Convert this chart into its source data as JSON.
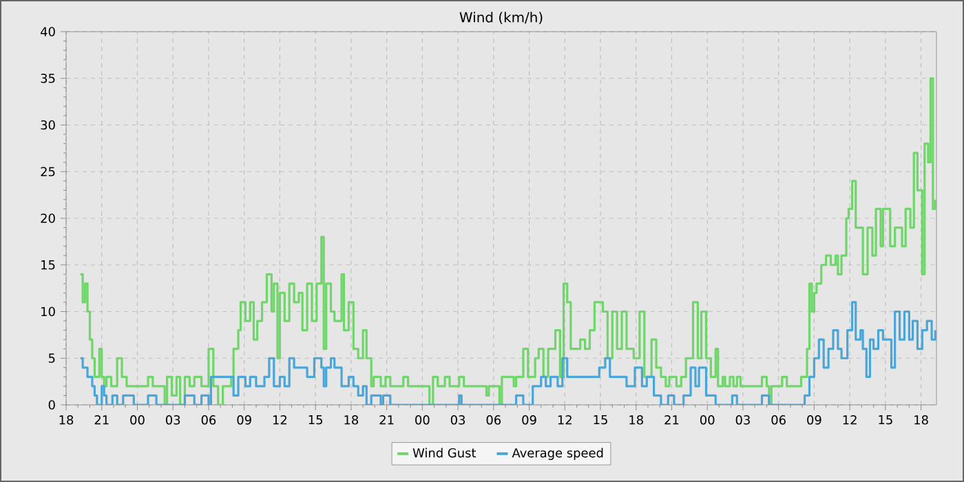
{
  "chart_data": {
    "type": "step",
    "title": "Wind (km/h)",
    "xlim": [
      18,
      91.3
    ],
    "ylim": [
      0,
      40
    ],
    "xticks": [
      18,
      21,
      {
        "value": 24,
        "label": "00"
      },
      {
        "value": 27,
        "label": "03"
      },
      {
        "value": 30,
        "label": "06"
      },
      {
        "value": 33,
        "label": "09"
      },
      {
        "value": 36,
        "label": "12"
      },
      {
        "value": 39,
        "label": "15"
      },
      {
        "value": 42,
        "label": "18"
      },
      {
        "value": 45,
        "label": "21"
      },
      {
        "value": 48,
        "label": "00"
      },
      {
        "value": 51,
        "label": "03"
      },
      {
        "value": 54,
        "label": "06"
      },
      {
        "value": 57,
        "label": "09"
      },
      {
        "value": 60,
        "label": "12"
      },
      {
        "value": 63,
        "label": "15"
      },
      {
        "value": 66,
        "label": "18"
      },
      {
        "value": 69,
        "label": "21"
      },
      {
        "value": 72,
        "label": "00"
      },
      {
        "value": 75,
        "label": "03"
      },
      {
        "value": 78,
        "label": "06"
      },
      {
        "value": 81,
        "label": "09"
      },
      {
        "value": 84,
        "label": "12"
      },
      {
        "value": 87,
        "label": "15"
      },
      {
        "value": 90,
        "label": "18"
      }
    ],
    "yticks": [
      0,
      5,
      10,
      15,
      20,
      25,
      30,
      35,
      40
    ],
    "grid": true,
    "legend": "bottom",
    "series": [
      {
        "name": "Wind Gust",
        "color": "#6fd66a",
        "x": [
          19.2,
          19.4,
          19.6,
          19.8,
          20.0,
          20.2,
          20.4,
          20.6,
          20.8,
          21.0,
          21.2,
          21.4,
          21.8,
          22.3,
          22.7,
          23.1,
          23.7,
          24.9,
          25.3,
          26.3,
          26.5,
          26.9,
          27.3,
          27.6,
          28.0,
          28.4,
          28.8,
          29.4,
          30.0,
          30.4,
          30.8,
          31.2,
          31.9,
          32.1,
          32.5,
          32.7,
          33.1,
          33.5,
          33.8,
          34.1,
          34.5,
          34.9,
          35.3,
          35.5,
          35.8,
          36.0,
          36.4,
          36.8,
          37.2,
          37.6,
          37.9,
          38.3,
          38.7,
          39.1,
          39.5,
          39.7,
          39.9,
          40.3,
          40.6,
          41.2,
          41.4,
          41.8,
          42.2,
          42.6,
          43.0,
          43.3,
          43.7,
          43.9,
          44.5,
          44.9,
          45.3,
          46.4,
          46.8,
          48.6,
          48.9,
          49.3,
          49.9,
          50.3,
          51.1,
          51.5,
          53.4,
          53.6,
          54.5,
          54.7,
          55.7,
          55.9,
          56.5,
          56.9,
          57.5,
          57.8,
          58.2,
          58.6,
          59.2,
          59.6,
          59.9,
          60.2,
          60.5,
          61.3,
          61.7,
          62.1,
          62.5,
          63.2,
          63.6,
          64.0,
          64.4,
          64.8,
          65.2,
          65.8,
          66.3,
          66.7,
          67.3,
          67.7,
          68.1,
          68.5,
          68.8,
          69.4,
          69.8,
          70.2,
          70.8,
          71.2,
          71.5,
          71.9,
          72.3,
          72.7,
          72.9,
          73.3,
          73.5,
          73.9,
          74.2,
          74.5,
          74.8,
          76.6,
          77.0,
          77.2,
          77.4,
          78.3,
          78.7,
          79.9,
          80.4,
          80.6,
          80.8,
          81.0,
          81.2,
          81.6,
          82.0,
          82.4,
          82.8,
          83.0,
          83.3,
          83.7,
          83.9,
          84.2,
          84.5,
          84.9,
          85.1,
          85.5,
          85.9,
          86.2,
          86.6,
          86.8,
          87.4,
          87.8,
          88.4,
          88.7,
          89.1,
          89.4,
          89.7,
          90.1,
          90.3,
          90.6,
          90.8,
          91.0,
          91.2
        ],
        "values": [
          14,
          11,
          13,
          10,
          7,
          5,
          3,
          3,
          6,
          3,
          2,
          3,
          2,
          5,
          3,
          2,
          2,
          3,
          2,
          0,
          3,
          1,
          3,
          0,
          3,
          2,
          3,
          2,
          6,
          2,
          0,
          2,
          3,
          6,
          8,
          11,
          9,
          11,
          7,
          9,
          11,
          14,
          10,
          13,
          5,
          12,
          9,
          13,
          11,
          12,
          8,
          13,
          9,
          13,
          18,
          6,
          13,
          10,
          9,
          14,
          8,
          11,
          6,
          5,
          8,
          5,
          2,
          3,
          2,
          3,
          2,
          3,
          2,
          0,
          3,
          2,
          3,
          2,
          3,
          2,
          1,
          2,
          0,
          3,
          2,
          3,
          6,
          3,
          5,
          6,
          3,
          6,
          8,
          3,
          13,
          11,
          6,
          7,
          6,
          8,
          11,
          10,
          5,
          10,
          6,
          10,
          6,
          5,
          10,
          3,
          7,
          4,
          3,
          2,
          3,
          2,
          3,
          5,
          11,
          5,
          10,
          5,
          3,
          6,
          2,
          3,
          2,
          3,
          2,
          3,
          2,
          3,
          2,
          0,
          2,
          3,
          2,
          3,
          6,
          13,
          10,
          12,
          13,
          15,
          16,
          15,
          16,
          14,
          16,
          20,
          21,
          24,
          19,
          19,
          14,
          19,
          16,
          21,
          17,
          21,
          17,
          19,
          17,
          21,
          19,
          27,
          23,
          14,
          28,
          26,
          35,
          21,
          22
        ]
      },
      {
        "name": "Average speed",
        "color": "#4aa6d8",
        "x": [
          19.2,
          19.4,
          19.8,
          20.2,
          20.4,
          20.6,
          21.0,
          21.2,
          21.4,
          21.9,
          22.3,
          22.8,
          23.7,
          24.9,
          25.6,
          28.0,
          28.8,
          29.4,
          30.0,
          30.2,
          32.1,
          32.5,
          33.1,
          33.5,
          34.0,
          34.7,
          35.1,
          35.5,
          36.0,
          36.4,
          36.8,
          37.2,
          37.7,
          38.3,
          38.9,
          39.5,
          39.7,
          39.9,
          40.3,
          40.6,
          41.2,
          41.8,
          42.2,
          42.6,
          43.0,
          43.3,
          43.7,
          44.5,
          44.7,
          45.3,
          51.1,
          51.3,
          55.9,
          56.5,
          57.3,
          58.0,
          58.4,
          58.8,
          59.4,
          59.8,
          60.2,
          62.9,
          63.4,
          63.8,
          65.2,
          65.9,
          66.5,
          66.9,
          67.5,
          68.1,
          68.7,
          69.2,
          70.0,
          70.6,
          71.0,
          71.3,
          71.9,
          72.7,
          74.1,
          74.5,
          76.6,
          77.2,
          80.2,
          80.6,
          81.0,
          81.4,
          81.8,
          82.2,
          82.6,
          83.0,
          83.3,
          83.8,
          84.2,
          84.5,
          84.9,
          85.1,
          85.4,
          85.7,
          86.0,
          86.4,
          86.8,
          87.5,
          87.8,
          88.2,
          88.6,
          89.0,
          89.3,
          89.7,
          90.1,
          90.5,
          90.9,
          91.2
        ],
        "values": [
          5,
          4,
          3,
          2,
          1,
          0,
          2,
          1,
          0,
          1,
          0,
          1,
          0,
          1,
          0,
          1,
          0,
          1,
          0,
          3,
          1,
          3,
          2,
          3,
          2,
          3,
          5,
          2,
          3,
          2,
          5,
          4,
          4,
          3,
          5,
          4,
          2,
          4,
          5,
          4,
          2,
          3,
          2,
          1,
          2,
          0,
          1,
          0,
          1,
          0,
          1,
          0,
          1,
          0,
          2,
          3,
          2,
          3,
          2,
          5,
          3,
          4,
          5,
          3,
          2,
          4,
          2,
          3,
          1,
          0,
          1,
          0,
          1,
          4,
          2,
          4,
          1,
          0,
          1,
          0,
          1,
          0,
          1,
          3,
          5,
          7,
          4,
          6,
          8,
          6,
          5,
          8,
          11,
          7,
          8,
          6,
          3,
          7,
          6,
          8,
          7,
          4,
          10,
          7,
          10,
          7,
          9,
          6,
          8,
          9,
          7,
          8
        ]
      }
    ]
  }
}
